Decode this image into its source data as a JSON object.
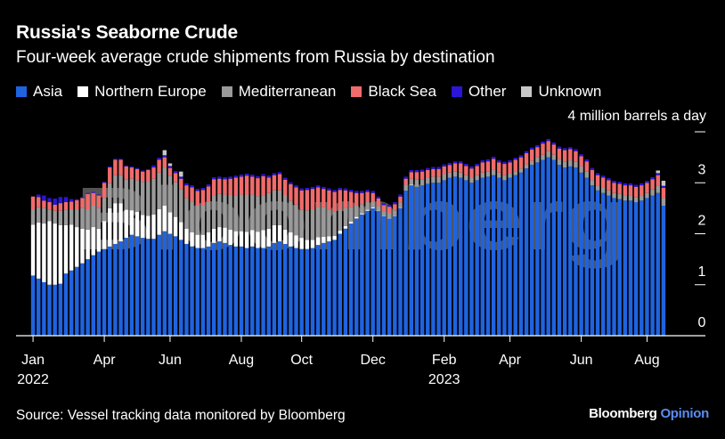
{
  "title": "Russia's Seaborne Crude",
  "subtitle": "Four-week average crude shipments from Russia by destination",
  "unit_label": "4 million barrels a day",
  "source": "Source: Vessel tracking data monitored by Bloomberg",
  "brand": {
    "name": "Bloomberg",
    "suffix": "Opinion"
  },
  "watermark": "Bloomberg",
  "legend": [
    {
      "name": "Asia",
      "color": "#1f63e0"
    },
    {
      "name": "Northern Europe",
      "color": "#ffffff"
    },
    {
      "name": "Mediterranean",
      "color": "#9a9a9a"
    },
    {
      "name": "Black Sea",
      "color": "#f06b6b"
    },
    {
      "name": "Other",
      "color": "#2b16d8"
    },
    {
      "name": "Unknown",
      "color": "#c8c8c8"
    }
  ],
  "chart_data": {
    "type": "bar",
    "stacked": true,
    "title": "Russia's Seaborne Crude",
    "subtitle": "Four-week average crude shipments from Russia by destination",
    "ylabel": "4 million barrels a day",
    "ylim": [
      0,
      4
    ],
    "yticks": [
      0,
      1,
      2,
      3
    ],
    "x_tick_labels": [
      {
        "label": "Jan",
        "sub": "2022",
        "index": 0
      },
      {
        "label": "Apr",
        "index": 13
      },
      {
        "label": "Jun",
        "index": 25
      },
      {
        "label": "Aug",
        "index": 38
      },
      {
        "label": "Oct",
        "index": 49
      },
      {
        "label": "Dec",
        "index": 62
      },
      {
        "label": "Feb",
        "sub": "2023",
        "index": 75
      },
      {
        "label": "Apr",
        "index": 87
      },
      {
        "label": "Jun",
        "index": 100
      },
      {
        "label": "Aug",
        "index": 112
      }
    ],
    "series": [
      {
        "name": "Asia",
        "values": [
          1.18,
          1.12,
          1.05,
          1.0,
          1.0,
          1.02,
          1.22,
          1.28,
          1.35,
          1.42,
          1.5,
          1.58,
          1.65,
          1.7,
          1.75,
          1.8,
          1.85,
          1.92,
          1.98,
          1.95,
          1.92,
          1.9,
          1.9,
          1.98,
          2.05,
          2.0,
          1.95,
          1.88,
          1.8,
          1.75,
          1.72,
          1.72,
          1.75,
          1.82,
          1.85,
          1.82,
          1.78,
          1.75,
          1.75,
          1.72,
          1.75,
          1.72,
          1.72,
          1.75,
          1.82,
          1.85,
          1.8,
          1.75,
          1.72,
          1.7,
          1.7,
          1.72,
          1.78,
          1.82,
          1.85,
          1.88,
          2.0,
          2.1,
          2.2,
          2.3,
          2.38,
          2.45,
          2.5,
          2.45,
          2.35,
          2.3,
          2.35,
          2.5,
          2.85,
          2.95,
          2.92,
          2.95,
          2.98,
          3.0,
          3.0,
          3.05,
          3.1,
          3.12,
          3.1,
          3.05,
          3.0,
          3.05,
          3.1,
          3.12,
          3.15,
          3.1,
          3.05,
          3.1,
          3.15,
          3.2,
          3.28,
          3.35,
          3.4,
          3.45,
          3.5,
          3.45,
          3.35,
          3.3,
          3.32,
          3.3,
          3.2,
          3.1,
          2.95,
          2.85,
          2.8,
          2.75,
          2.7,
          2.68,
          2.65,
          2.65,
          2.62,
          2.65,
          2.7,
          2.75,
          2.8,
          2.55
        ]
      },
      {
        "name": "Northern Europe",
        "values": [
          1.0,
          1.1,
          1.15,
          1.25,
          1.2,
          1.15,
          0.95,
          0.9,
          0.78,
          0.68,
          0.58,
          0.55,
          0.45,
          0.55,
          0.75,
          0.8,
          0.75,
          0.55,
          0.48,
          0.48,
          0.45,
          0.45,
          0.48,
          0.5,
          0.5,
          0.42,
          0.38,
          0.35,
          0.3,
          0.28,
          0.26,
          0.26,
          0.28,
          0.28,
          0.28,
          0.3,
          0.3,
          0.3,
          0.3,
          0.32,
          0.32,
          0.32,
          0.35,
          0.35,
          0.35,
          0.32,
          0.28,
          0.28,
          0.25,
          0.22,
          0.18,
          0.16,
          0.15,
          0.12,
          0.1,
          0.08,
          0.06,
          0.05,
          0.04,
          0.03,
          0.02,
          0.02,
          0.02,
          0.01,
          0.01,
          0.01,
          0.01,
          0.01,
          0.01,
          0.01,
          0.0,
          0.0,
          0.0,
          0.0,
          0.0,
          0.0,
          0.0,
          0.0,
          0.0,
          0.0,
          0.0,
          0.0,
          0.0,
          0.0,
          0.0,
          0.0,
          0.0,
          0.0,
          0.0,
          0.0,
          0.0,
          0.0,
          0.0,
          0.0,
          0.0,
          0.0,
          0.0,
          0.0,
          0.0,
          0.0,
          0.0,
          0.0,
          0.0,
          0.0,
          0.0,
          0.0,
          0.0,
          0.0,
          0.0,
          0.0,
          0.0,
          0.0,
          0.0,
          0.0,
          0.0,
          0.0
        ]
      },
      {
        "name": "Mediterranean",
        "values": [
          0.3,
          0.3,
          0.3,
          0.22,
          0.25,
          0.28,
          0.3,
          0.3,
          0.35,
          0.4,
          0.4,
          0.42,
          0.4,
          0.45,
          0.5,
          0.55,
          0.55,
          0.6,
          0.62,
          0.62,
          0.65,
          0.68,
          0.7,
          0.72,
          0.75,
          0.72,
          0.68,
          0.65,
          0.6,
          0.6,
          0.58,
          0.58,
          0.6,
          0.65,
          0.65,
          0.65,
          0.68,
          0.7,
          0.72,
          0.72,
          0.7,
          0.7,
          0.68,
          0.7,
          0.68,
          0.68,
          0.68,
          0.62,
          0.6,
          0.55,
          0.58,
          0.6,
          0.6,
          0.58,
          0.52,
          0.48,
          0.42,
          0.35,
          0.28,
          0.22,
          0.18,
          0.15,
          0.1,
          0.08,
          0.08,
          0.1,
          0.1,
          0.1,
          0.1,
          0.12,
          0.14,
          0.12,
          0.12,
          0.12,
          0.12,
          0.12,
          0.1,
          0.1,
          0.1,
          0.1,
          0.1,
          0.1,
          0.1,
          0.1,
          0.1,
          0.1,
          0.1,
          0.08,
          0.08,
          0.08,
          0.08,
          0.08,
          0.1,
          0.1,
          0.12,
          0.1,
          0.12,
          0.12,
          0.12,
          0.12,
          0.12,
          0.12,
          0.1,
          0.1,
          0.1,
          0.1,
          0.1,
          0.1,
          0.1,
          0.1,
          0.1,
          0.1,
          0.1,
          0.12,
          0.15,
          0.15
        ]
      },
      {
        "name": "Black Sea",
        "values": [
          0.25,
          0.2,
          0.15,
          0.15,
          0.12,
          0.15,
          0.15,
          0.15,
          0.18,
          0.2,
          0.3,
          0.25,
          0.25,
          0.3,
          0.3,
          0.3,
          0.3,
          0.25,
          0.22,
          0.22,
          0.2,
          0.22,
          0.22,
          0.25,
          0.2,
          0.15,
          0.18,
          0.2,
          0.25,
          0.28,
          0.28,
          0.3,
          0.3,
          0.32,
          0.3,
          0.3,
          0.32,
          0.35,
          0.35,
          0.38,
          0.35,
          0.35,
          0.38,
          0.3,
          0.3,
          0.32,
          0.3,
          0.32,
          0.34,
          0.38,
          0.4,
          0.4,
          0.38,
          0.36,
          0.38,
          0.38,
          0.38,
          0.35,
          0.3,
          0.25,
          0.22,
          0.2,
          0.18,
          0.15,
          0.12,
          0.12,
          0.12,
          0.12,
          0.12,
          0.13,
          0.15,
          0.15,
          0.15,
          0.15,
          0.15,
          0.15,
          0.15,
          0.16,
          0.18,
          0.18,
          0.18,
          0.18,
          0.2,
          0.2,
          0.22,
          0.2,
          0.22,
          0.22,
          0.22,
          0.22,
          0.22,
          0.22,
          0.2,
          0.22,
          0.2,
          0.2,
          0.2,
          0.22,
          0.22,
          0.2,
          0.2,
          0.2,
          0.2,
          0.2,
          0.2,
          0.2,
          0.2,
          0.2,
          0.2,
          0.2,
          0.2,
          0.2,
          0.2,
          0.2,
          0.2,
          0.2
        ]
      },
      {
        "name": "Other",
        "values": [
          0.0,
          0.05,
          0.1,
          0.08,
          0.12,
          0.12,
          0.1,
          0.05,
          0.02,
          0.02,
          0.02,
          0.02,
          0.02,
          0.02,
          0.02,
          0.02,
          0.02,
          0.02,
          0.02,
          0.02,
          0.02,
          0.02,
          0.04,
          0.04,
          0.04,
          0.04,
          0.04,
          0.04,
          0.04,
          0.04,
          0.04,
          0.04,
          0.04,
          0.04,
          0.04,
          0.04,
          0.04,
          0.04,
          0.04,
          0.04,
          0.04,
          0.04,
          0.04,
          0.04,
          0.04,
          0.04,
          0.04,
          0.04,
          0.04,
          0.04,
          0.04,
          0.04,
          0.04,
          0.04,
          0.04,
          0.04,
          0.04,
          0.04,
          0.04,
          0.04,
          0.04,
          0.04,
          0.04,
          0.04,
          0.04,
          0.04,
          0.04,
          0.04,
          0.04,
          0.04,
          0.04,
          0.04,
          0.04,
          0.04,
          0.04,
          0.04,
          0.04,
          0.04,
          0.04,
          0.04,
          0.04,
          0.04,
          0.04,
          0.04,
          0.04,
          0.04,
          0.04,
          0.04,
          0.04,
          0.04,
          0.04,
          0.04,
          0.04,
          0.04,
          0.04,
          0.04,
          0.04,
          0.04,
          0.04,
          0.04,
          0.04,
          0.04,
          0.04,
          0.04,
          0.04,
          0.04,
          0.04,
          0.04,
          0.04,
          0.04,
          0.04,
          0.04,
          0.04,
          0.04,
          0.04,
          0.04
        ]
      },
      {
        "name": "Unknown",
        "values": [
          0.0,
          0.0,
          0.0,
          0.0,
          0.0,
          0.0,
          0.0,
          0.0,
          0.0,
          0.0,
          0.0,
          0.0,
          0.0,
          0.0,
          0.0,
          0.0,
          0.0,
          0.0,
          0.0,
          0.0,
          0.0,
          0.0,
          0.0,
          0.0,
          0.1,
          0.05,
          0.0,
          0.1,
          0.0,
          0.0,
          0.0,
          0.0,
          0.0,
          0.0,
          0.0,
          0.0,
          0.0,
          0.0,
          0.0,
          0.0,
          0.0,
          0.0,
          0.0,
          0.0,
          0.0,
          0.0,
          0.0,
          0.0,
          0.0,
          0.0,
          0.0,
          0.0,
          0.0,
          0.0,
          0.0,
          0.0,
          0.0,
          0.0,
          0.0,
          0.0,
          0.0,
          0.0,
          0.0,
          0.0,
          0.0,
          0.0,
          0.0,
          0.0,
          0.0,
          0.0,
          0.0,
          0.0,
          0.0,
          0.0,
          0.0,
          0.0,
          0.0,
          0.0,
          0.0,
          0.0,
          0.0,
          0.0,
          0.0,
          0.0,
          0.0,
          0.0,
          0.0,
          0.0,
          0.0,
          0.0,
          0.0,
          0.0,
          0.0,
          0.0,
          0.0,
          0.0,
          0.0,
          0.0,
          0.0,
          0.0,
          0.0,
          0.0,
          0.0,
          0.0,
          0.0,
          0.0,
          0.0,
          0.0,
          0.0,
          0.0,
          0.0,
          0.0,
          0.0,
          0.0,
          0.05,
          0.1
        ]
      }
    ]
  }
}
